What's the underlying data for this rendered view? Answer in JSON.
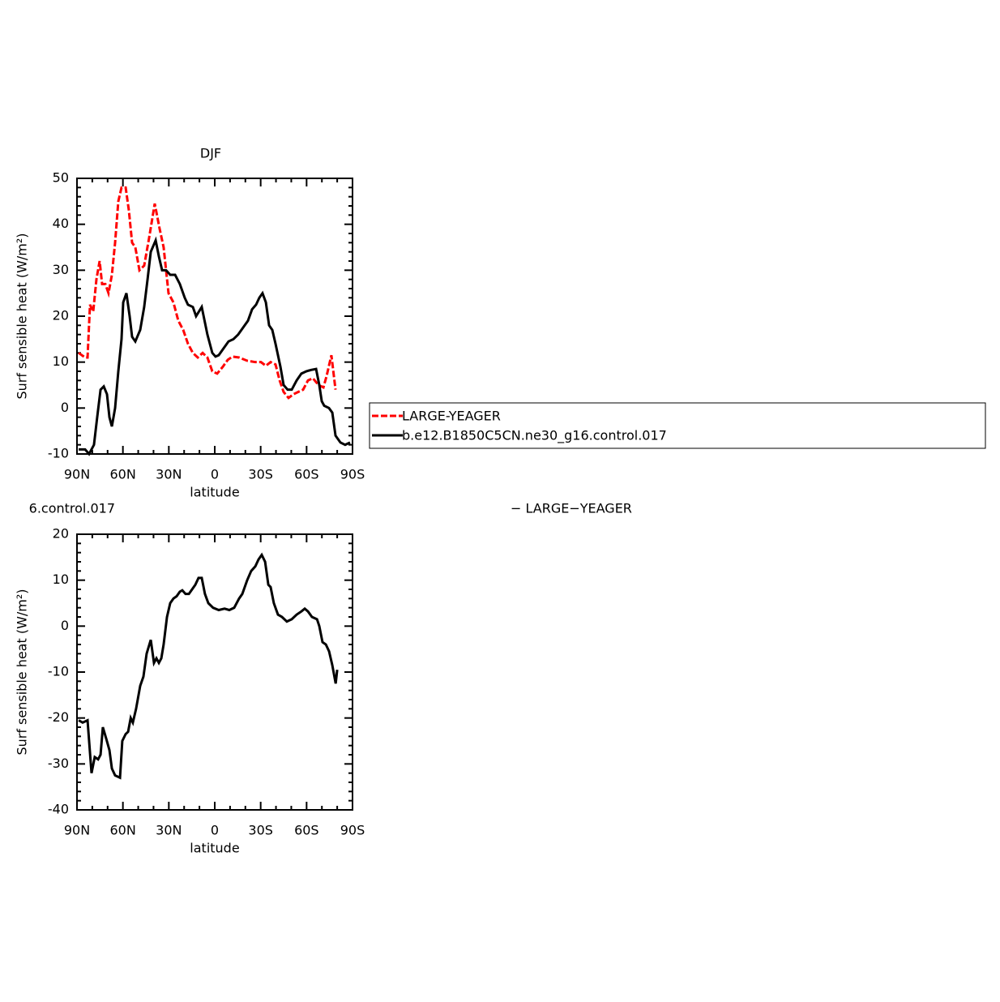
{
  "chart_data": [
    {
      "type": "line",
      "title": "DJF",
      "x_label": "latitude",
      "y_label": "Surf sensible heat (W/m²)",
      "xlim": [
        90,
        -90
      ],
      "xticks": [
        {
          "value": 90,
          "label": "90N"
        },
        {
          "value": 60,
          "label": "60N"
        },
        {
          "value": 30,
          "label": "30N"
        },
        0,
        {
          "value": -30,
          "label": "30S"
        },
        {
          "value": -60,
          "label": "60S"
        },
        {
          "value": -90,
          "label": "90S"
        }
      ],
      "ylim": [
        -10,
        50
      ],
      "yticks": [
        -10,
        0,
        10,
        20,
        30,
        40,
        50
      ],
      "series": [
        {
          "name": "LARGE-YEAGER",
          "color": "#ff0000",
          "dashed": true,
          "x": [
            88.9,
            84.7,
            83.1,
            81.5,
            79.4,
            77.3,
            75.2,
            73.6,
            71.5,
            69.4,
            67.2,
            65.1,
            63.0,
            60.9,
            58.2,
            56.1,
            54.0,
            51.9,
            49.2,
            46.1,
            42.9,
            39.2,
            36.0,
            33.4,
            30.2,
            27.0,
            23.8,
            20.6,
            17.5,
            14.3,
            11.1,
            7.9,
            4.8,
            1.6,
            -1.6,
            -5.3,
            -8.5,
            -11.6,
            -15.9,
            -21.2,
            -26.5,
            -30.2,
            -33.4,
            -36.5,
            -39.7,
            -42.4,
            -45.0,
            -48.2,
            -51.4,
            -54.5,
            -57.7,
            -60.9,
            -64.1,
            -67.8,
            -71.0,
            -73.1,
            -76.2,
            -78.9
          ],
          "values": [
            12,
            11,
            11,
            22.5,
            21,
            28,
            32,
            27,
            27,
            25,
            29,
            36,
            45,
            48,
            48,
            43,
            36,
            35,
            30,
            31,
            37,
            44.5,
            39,
            35,
            25,
            23,
            19,
            17,
            14,
            12,
            11,
            12,
            11,
            8,
            7.5,
            9,
            10.5,
            11.2,
            11,
            10.3,
            10,
            10,
            9.2,
            10,
            9.5,
            6,
            3.5,
            2.2,
            3,
            3.5,
            4,
            6,
            6.5,
            5,
            4.5,
            7,
            11.5,
            4
          ]
        },
        {
          "name": "b.e12.B1850C5CN.ne30_g16.control.017",
          "color": "#000000",
          "dashed": false,
          "x": [
            88.9,
            84.7,
            82.1,
            78.9,
            76.8,
            74.6,
            72.5,
            70.4,
            68.8,
            67.2,
            65.1,
            63.0,
            60.9,
            59.8,
            57.7,
            55.6,
            54.0,
            51.9,
            48.7,
            46.1,
            43.9,
            41.8,
            38.6,
            36.5,
            34.4,
            31.8,
            29.1,
            25.9,
            22.8,
            19.6,
            17.5,
            14.3,
            12.2,
            8.5,
            4.8,
            1.6,
            -0.5,
            -2.6,
            -5.8,
            -9.0,
            -12.2,
            -15.3,
            -18.5,
            -21.7,
            -24.4,
            -27.0,
            -29.1,
            -31.2,
            -33.4,
            -35.5,
            -37.6,
            -39.7,
            -42.9,
            -45.0,
            -47.6,
            -50.3,
            -53.5,
            -56.6,
            -59.8,
            -63.0,
            -66.2,
            -68.3,
            -69.9,
            -71.5,
            -74.6,
            -76.8,
            -78.9,
            -82.1,
            -85.2,
            -88.4
          ],
          "values": [
            -9,
            -9,
            -10,
            -8,
            -2,
            4,
            4.7,
            3,
            -2,
            -4,
            0,
            8,
            15,
            23,
            25,
            20,
            15.5,
            14.5,
            17,
            22,
            28,
            34,
            36.5,
            33,
            30,
            30,
            29,
            29,
            27,
            24,
            22.5,
            22,
            20,
            22,
            16,
            12,
            11.2,
            11.5,
            13,
            14.5,
            15,
            16,
            17.5,
            19,
            21.5,
            22.5,
            24,
            25,
            23,
            18,
            17,
            14,
            9,
            5,
            4,
            4,
            6,
            7.5,
            8,
            8.3,
            8.5,
            5,
            1.5,
            0.5,
            0,
            -1,
            -6,
            -7.5,
            -8,
            -7.5
          ]
        }
      ]
    },
    {
      "type": "line",
      "title_left": "6.control.017",
      "title_right": "− LARGE−YEAGER",
      "x_label": "latitude",
      "y_label": "Surf sensible heat (W/m²)",
      "xlim": [
        90,
        -90
      ],
      "xticks": [
        {
          "value": 90,
          "label": "90N"
        },
        {
          "value": 60,
          "label": "60N"
        },
        {
          "value": 30,
          "label": "30N"
        },
        0,
        {
          "value": -30,
          "label": "30S"
        },
        {
          "value": -60,
          "label": "60S"
        },
        {
          "value": -90,
          "label": "90S"
        }
      ],
      "ylim": [
        -40,
        20
      ],
      "yticks": [
        -40,
        -30,
        -20,
        -10,
        0,
        10,
        20
      ],
      "series": [
        {
          "color": "#000000",
          "dashed": false,
          "x": [
            88.9,
            86.3,
            83.1,
            80.5,
            78.4,
            76.2,
            74.6,
            73.1,
            70.9,
            68.8,
            67.2,
            65.1,
            61.9,
            60.4,
            58.2,
            56.6,
            54.9,
            53.5,
            51.4,
            48.7,
            46.6,
            44.5,
            41.8,
            39.7,
            38.1,
            36.5,
            34.9,
            33.4,
            31.2,
            29.1,
            27.0,
            24.9,
            22.8,
            21.2,
            19.1,
            16.9,
            14.8,
            12.7,
            10.6,
            8.5,
            6.4,
            4.2,
            1.1,
            -2.6,
            -6.4,
            -9.5,
            -12.7,
            -15.9,
            -18.0,
            -21.2,
            -23.8,
            -26.5,
            -28.6,
            -30.7,
            -32.9,
            -35.0,
            -36.5,
            -38.6,
            -41.3,
            -43.9,
            -47.1,
            -50.3,
            -53.5,
            -56.6,
            -58.8,
            -60.9,
            -63.5,
            -66.8,
            -68.3,
            -70.4,
            -72.6,
            -74.7,
            -76.8,
            -79.0,
            -80.0
          ],
          "values": [
            -20.5,
            -21,
            -20.5,
            -32,
            -28.5,
            -29,
            -28,
            -22,
            -24.5,
            -27,
            -31,
            -32.5,
            -33,
            -25,
            -23.5,
            -23,
            -20,
            -21,
            -18,
            -13,
            -11,
            -6,
            -3,
            -8,
            -7,
            -8,
            -7,
            -4,
            2,
            5,
            6,
            6.5,
            7.5,
            7.8,
            7,
            7,
            8,
            9,
            10.5,
            10.5,
            7,
            5,
            4,
            3.5,
            3.8,
            3.5,
            4,
            6,
            7,
            10,
            12,
            13,
            14.5,
            15.5,
            14,
            9,
            8.5,
            5,
            2.5,
            2,
            1,
            1.5,
            2.5,
            3.2,
            3.8,
            3.2,
            2,
            1.5,
            0,
            -3.5,
            -4,
            -5.5,
            -8.5,
            -12.5,
            -9.5
          ]
        }
      ]
    }
  ]
}
